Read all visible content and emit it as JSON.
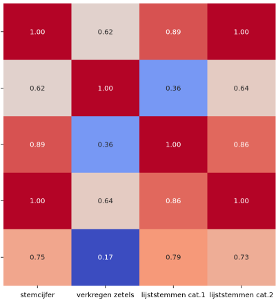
{
  "chart_data": {
    "type": "heatmap",
    "title": "",
    "xlabel": "",
    "ylabel": "",
    "x_categories": [
      "stemcijfer",
      "verkregen zetels",
      "lijststemmen cat.1",
      "lijststemmen cat.2"
    ],
    "y_categories": [
      "",
      "",
      "",
      "",
      ""
    ],
    "values": [
      [
        1.0,
        0.62,
        0.89,
        1.0
      ],
      [
        0.62,
        1.0,
        0.36,
        0.64
      ],
      [
        0.89,
        0.36,
        1.0,
        0.86
      ],
      [
        1.0,
        0.64,
        0.86,
        1.0
      ],
      [
        0.75,
        0.17,
        0.79,
        0.73
      ]
    ],
    "value_labels": [
      [
        "1.00",
        "0.62",
        "0.89",
        "1.00"
      ],
      [
        "0.62",
        "1.00",
        "0.36",
        "0.64"
      ],
      [
        "0.89",
        "0.36",
        "1.00",
        "0.86"
      ],
      [
        "1.00",
        "0.64",
        "0.86",
        "1.00"
      ],
      [
        "0.75",
        "0.17",
        "0.79",
        "0.73"
      ]
    ],
    "colormap": "coolwarm",
    "color_range": [
      0.17,
      1.0
    ],
    "grid": false,
    "legend": "none"
  }
}
